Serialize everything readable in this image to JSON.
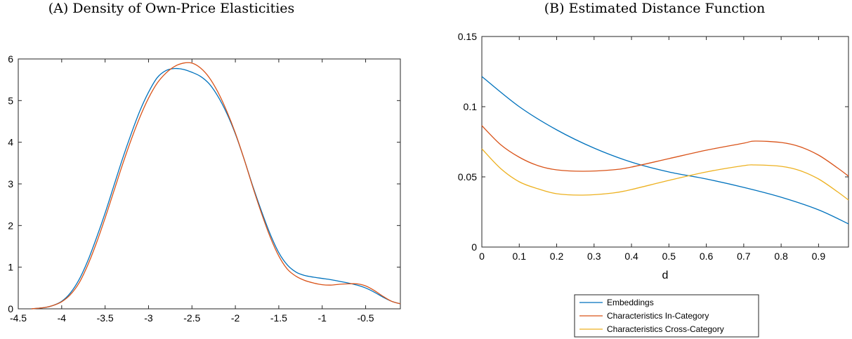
{
  "chart_data": [
    {
      "type": "line",
      "title": "(A) Density of Own-Price Elasticities",
      "xlabel": "",
      "ylabel": "",
      "xlim": [
        -4.5,
        -0.1
      ],
      "ylim": [
        0,
        6
      ],
      "xticks": [
        -4.5,
        -4,
        -3.5,
        -3,
        -2.5,
        -2,
        -1.5,
        -1,
        -0.5
      ],
      "xtick_labels": [
        "-4.5",
        "-4",
        "-3.5",
        "-3",
        "-2.5",
        "-2",
        "-1.5",
        "-1",
        "-0.5"
      ],
      "yticks": [
        0,
        1,
        2,
        3,
        4,
        5,
        6
      ],
      "ytick_labels": [
        "0",
        "1",
        "2",
        "3",
        "4",
        "5",
        "6"
      ],
      "grid": false,
      "series": [
        {
          "color": "#0072BD",
          "x": [
            -4.35,
            -4.2,
            -4.1,
            -4.0,
            -3.9,
            -3.8,
            -3.7,
            -3.6,
            -3.5,
            -3.4,
            -3.3,
            -3.2,
            -3.1,
            -3.0,
            -2.9,
            -2.8,
            -2.7,
            -2.6,
            -2.5,
            -2.4,
            -2.3,
            -2.2,
            -2.1,
            -2.0,
            -1.9,
            -1.8,
            -1.7,
            -1.6,
            -1.5,
            -1.4,
            -1.3,
            -1.2,
            -1.1,
            -1.0,
            -0.9,
            -0.8,
            -0.7,
            -0.6,
            -0.5,
            -0.4,
            -0.3,
            -0.2,
            -0.1
          ],
          "values": [
            0.0,
            0.03,
            0.08,
            0.18,
            0.38,
            0.7,
            1.15,
            1.7,
            2.3,
            2.95,
            3.6,
            4.2,
            4.75,
            5.2,
            5.55,
            5.72,
            5.77,
            5.75,
            5.68,
            5.58,
            5.4,
            5.1,
            4.7,
            4.2,
            3.6,
            2.95,
            2.35,
            1.8,
            1.35,
            1.05,
            0.88,
            0.8,
            0.76,
            0.73,
            0.7,
            0.66,
            0.62,
            0.57,
            0.5,
            0.4,
            0.28,
            0.18,
            0.12
          ]
        },
        {
          "color": "#D95319",
          "x": [
            -4.35,
            -4.2,
            -4.1,
            -4.0,
            -3.9,
            -3.8,
            -3.7,
            -3.6,
            -3.5,
            -3.4,
            -3.3,
            -3.2,
            -3.1,
            -3.0,
            -2.9,
            -2.8,
            -2.7,
            -2.6,
            -2.5,
            -2.4,
            -2.3,
            -2.2,
            -2.1,
            -2.0,
            -1.9,
            -1.8,
            -1.7,
            -1.6,
            -1.5,
            -1.4,
            -1.3,
            -1.2,
            -1.1,
            -1.0,
            -0.9,
            -0.8,
            -0.7,
            -0.6,
            -0.5,
            -0.4,
            -0.3,
            -0.2,
            -0.1
          ],
          "values": [
            0.0,
            0.03,
            0.08,
            0.17,
            0.34,
            0.62,
            1.05,
            1.58,
            2.18,
            2.82,
            3.46,
            4.06,
            4.6,
            5.06,
            5.42,
            5.66,
            5.82,
            5.9,
            5.9,
            5.78,
            5.55,
            5.2,
            4.75,
            4.22,
            3.6,
            2.93,
            2.3,
            1.73,
            1.27,
            0.95,
            0.78,
            0.68,
            0.62,
            0.58,
            0.57,
            0.59,
            0.6,
            0.6,
            0.55,
            0.44,
            0.3,
            0.18,
            0.12
          ]
        }
      ]
    },
    {
      "type": "line",
      "title": "(B) Estimated Distance Function",
      "xlabel": "d",
      "ylabel": "",
      "xlim": [
        0,
        0.98
      ],
      "ylim": [
        0,
        0.15
      ],
      "xticks": [
        0,
        0.1,
        0.2,
        0.3,
        0.4,
        0.5,
        0.6,
        0.7,
        0.8,
        0.9
      ],
      "xtick_labels": [
        "0",
        "0.1",
        "0.2",
        "0.3",
        "0.4",
        "0.5",
        "0.6",
        "0.7",
        "0.8",
        "0.9"
      ],
      "yticks": [
        0,
        0.05,
        0.1,
        0.15
      ],
      "ytick_labels": [
        "0",
        "0.05",
        "0.1",
        "0.15"
      ],
      "grid": false,
      "legend": "bottom-center",
      "series": [
        {
          "name": "Embeddings",
          "color": "#0072BD",
          "x": [
            0,
            0.1,
            0.2,
            0.3,
            0.4,
            0.5,
            0.6,
            0.7,
            0.8,
            0.9,
            0.98
          ],
          "values": [
            0.1215,
            0.1,
            0.0835,
            0.0705,
            0.0605,
            0.0535,
            0.0485,
            0.0425,
            0.0355,
            0.0265,
            0.0165
          ]
        },
        {
          "name": "Characteristics In-Category",
          "color": "#D95319",
          "x": [
            0,
            0.05,
            0.1,
            0.15,
            0.2,
            0.27,
            0.35,
            0.4,
            0.5,
            0.6,
            0.7,
            0.73,
            0.8,
            0.85,
            0.9,
            0.95,
            0.98
          ],
          "values": [
            0.0865,
            0.073,
            0.064,
            0.058,
            0.055,
            0.054,
            0.055,
            0.057,
            0.063,
            0.069,
            0.074,
            0.0755,
            0.0745,
            0.0715,
            0.0655,
            0.0565,
            0.0505
          ]
        },
        {
          "name": "Characteristics Cross-Category",
          "color": "#EDB120",
          "x": [
            0,
            0.05,
            0.1,
            0.15,
            0.2,
            0.27,
            0.35,
            0.4,
            0.5,
            0.6,
            0.7,
            0.73,
            0.8,
            0.85,
            0.9,
            0.95,
            0.98
          ],
          "values": [
            0.07,
            0.056,
            0.0465,
            0.0415,
            0.038,
            0.037,
            0.0385,
            0.041,
            0.0475,
            0.0535,
            0.058,
            0.0585,
            0.0575,
            0.0545,
            0.0485,
            0.0395,
            0.0335
          ]
        }
      ]
    }
  ]
}
